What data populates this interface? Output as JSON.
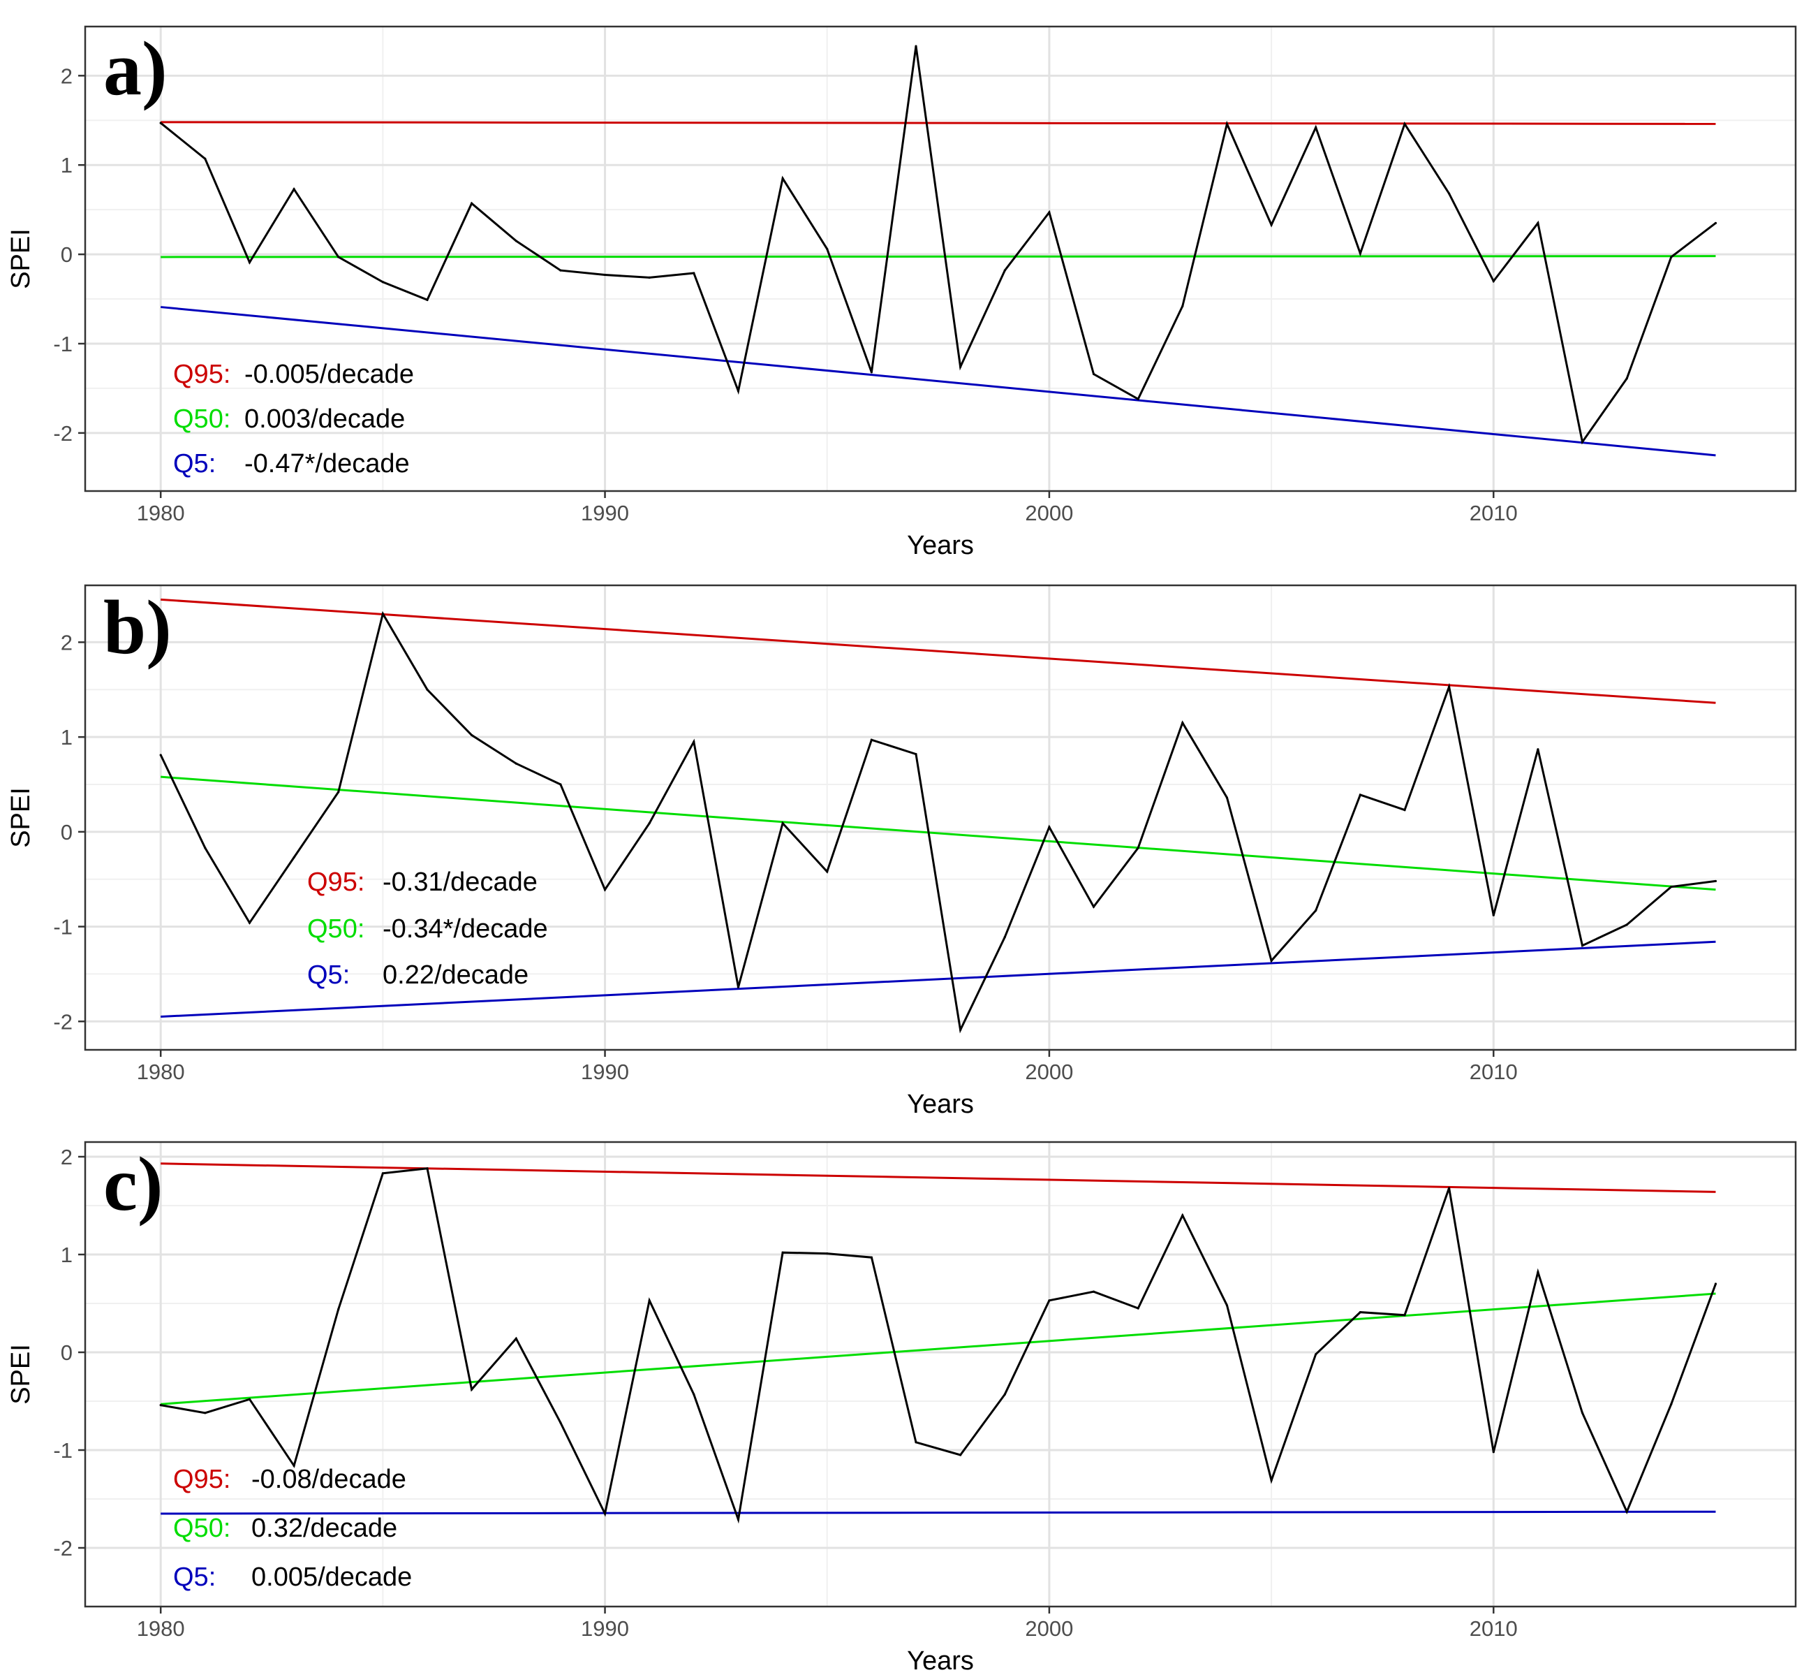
{
  "chart_data": [
    {
      "type": "line",
      "panel_label": "a)",
      "xlabel": "Years",
      "ylabel": "SPEI",
      "xlim": [
        1978.3,
        2016.8
      ],
      "ylim": [
        -2.65,
        2.55
      ],
      "xticks": [
        1980,
        1990,
        2000,
        2010
      ],
      "yticks": [
        -2,
        -1,
        0,
        1,
        2
      ],
      "grid": true,
      "x": [
        1980,
        1981,
        1982,
        1983,
        1984,
        1985,
        1986,
        1987,
        1988,
        1989,
        1990,
        1991,
        1992,
        1993,
        1994,
        1995,
        1996,
        1997,
        1998,
        1999,
        2000,
        2001,
        2002,
        2003,
        2004,
        2005,
        2006,
        2007,
        2008,
        2009,
        2010,
        2011,
        2012,
        2013,
        2014,
        2015
      ],
      "series": [
        {
          "name": "SPEI",
          "color": "#000000",
          "values": [
            1.47,
            1.07,
            -0.09,
            0.73,
            -0.03,
            -0.31,
            -0.51,
            0.57,
            0.15,
            -0.18,
            -0.23,
            -0.26,
            -0.21,
            -1.53,
            0.85,
            0.06,
            -1.32,
            2.33,
            -1.26,
            -0.18,
            0.47,
            -1.34,
            -1.62,
            -0.58,
            1.46,
            0.33,
            1.42,
            0.01,
            1.46,
            0.68,
            -0.3,
            0.35,
            -2.1,
            -1.39,
            -0.03,
            0.35
          ]
        }
      ],
      "trends": [
        {
          "name": "Q95",
          "color": "#cc0000",
          "start": 1.48,
          "end": 1.46,
          "label_name": "Q95:",
          "label_value": "-0.005/decade"
        },
        {
          "name": "Q50",
          "color": "#00dd00",
          "start": -0.03,
          "end": -0.02,
          "label_name": "Q50:",
          "label_value": "0.003/decade"
        },
        {
          "name": "Q5",
          "color": "#0000bb",
          "start": -0.59,
          "end": -2.25,
          "label_name": "Q5:",
          "label_value": "-0.47*/decade"
        }
      ]
    },
    {
      "type": "line",
      "panel_label": "b)",
      "xlabel": "Years",
      "ylabel": "SPEI",
      "xlim": [
        1978.3,
        2016.8
      ],
      "ylim": [
        -2.3,
        2.6
      ],
      "xticks": [
        1980,
        1990,
        2000,
        2010
      ],
      "yticks": [
        -2,
        -1,
        0,
        1,
        2
      ],
      "grid": true,
      "x": [
        1980,
        1981,
        1982,
        1983,
        1984,
        1985,
        1986,
        1987,
        1988,
        1989,
        1990,
        1991,
        1992,
        1993,
        1994,
        1995,
        1996,
        1997,
        1998,
        1999,
        2000,
        2001,
        2002,
        2003,
        2004,
        2005,
        2006,
        2007,
        2008,
        2009,
        2010,
        2011,
        2012,
        2013,
        2014,
        2015
      ],
      "series": [
        {
          "name": "SPEI",
          "color": "#000000",
          "values": [
            0.81,
            -0.17,
            -0.96,
            -0.27,
            0.42,
            2.3,
            1.5,
            1.02,
            0.72,
            0.5,
            -0.61,
            0.09,
            0.95,
            -1.64,
            0.09,
            -0.42,
            0.97,
            0.82,
            -2.09,
            -1.11,
            0.05,
            -0.79,
            -0.17,
            1.15,
            0.36,
            -1.36,
            -0.83,
            0.39,
            0.23,
            1.53,
            -0.88,
            0.87,
            -1.2,
            -0.98,
            -0.58,
            -0.52
          ]
        }
      ],
      "trends": [
        {
          "name": "Q95",
          "color": "#cc0000",
          "start": 2.45,
          "end": 1.36,
          "label_name": "Q95:",
          "label_value": "-0.31/decade"
        },
        {
          "name": "Q50",
          "color": "#00dd00",
          "start": 0.58,
          "end": -0.61,
          "label_name": "Q50:",
          "label_value": "-0.34*/decade"
        },
        {
          "name": "Q5",
          "color": "#0000bb",
          "start": -1.95,
          "end": -1.16,
          "label_name": "Q5:",
          "label_value": "0.22/decade"
        }
      ]
    },
    {
      "type": "line",
      "panel_label": "c)",
      "xlabel": "Years",
      "ylabel": "SPEI",
      "xlim": [
        1978.3,
        2016.8
      ],
      "ylim": [
        -2.6,
        2.15
      ],
      "xticks": [
        1980,
        1990,
        2000,
        2010
      ],
      "yticks": [
        -2,
        -1,
        0,
        1,
        2
      ],
      "grid": true,
      "x": [
        1980,
        1981,
        1982,
        1983,
        1984,
        1985,
        1986,
        1987,
        1988,
        1989,
        1990,
        1991,
        1992,
        1993,
        1994,
        1995,
        1996,
        1997,
        1998,
        1999,
        2000,
        2001,
        2002,
        2003,
        2004,
        2005,
        2006,
        2007,
        2008,
        2009,
        2010,
        2011,
        2012,
        2013,
        2014,
        2015
      ],
      "series": [
        {
          "name": "SPEI",
          "color": "#000000",
          "values": [
            -0.54,
            -0.62,
            -0.48,
            -1.16,
            0.44,
            1.83,
            1.88,
            -0.38,
            0.14,
            -0.72,
            -1.65,
            0.53,
            -0.43,
            -1.71,
            1.02,
            1.01,
            0.97,
            -0.92,
            -1.05,
            -0.43,
            0.53,
            0.62,
            0.45,
            1.4,
            0.48,
            -1.31,
            -0.02,
            0.41,
            0.38,
            1.68,
            -1.02,
            0.82,
            -0.62,
            -1.63,
            -0.53,
            0.7
          ]
        }
      ],
      "trends": [
        {
          "name": "Q95",
          "color": "#cc0000",
          "start": 1.93,
          "end": 1.64,
          "label_name": "Q95:",
          "label_value": "-0.08/decade"
        },
        {
          "name": "Q50",
          "color": "#00dd00",
          "start": -0.53,
          "end": 0.6,
          "label_name": "Q50:",
          "label_value": "0.32/decade"
        },
        {
          "name": "Q5",
          "color": "#0000bb",
          "start": -1.65,
          "end": -1.63,
          "label_name": "Q5:",
          "label_value": "0.005/decade"
        }
      ]
    }
  ]
}
